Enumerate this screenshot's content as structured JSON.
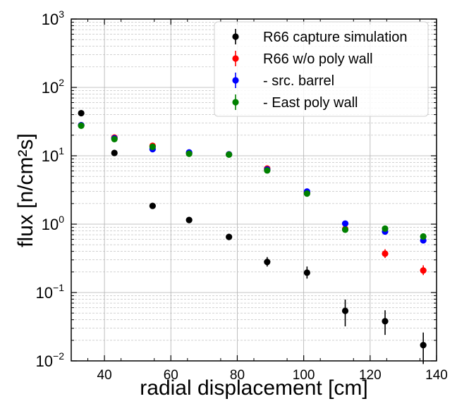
{
  "chart_data": {
    "type": "scatter",
    "title": "",
    "xlabel": "radial displacement [cm]",
    "ylabel": "flux [n/cm²s]",
    "xlim": [
      30,
      140
    ],
    "ylim": [
      0.01,
      1000
    ],
    "yscale": "log",
    "x_ticks": [
      40,
      60,
      80,
      100,
      120,
      140
    ],
    "y_ticks": [
      0.01,
      0.1,
      1,
      10,
      100,
      1000
    ],
    "y_tick_labels": [
      {
        "base": "10",
        "exp": "−2"
      },
      {
        "base": "10",
        "exp": "−1"
      },
      {
        "base": "10",
        "exp": "0"
      },
      {
        "base": "10",
        "exp": "1"
      },
      {
        "base": "10",
        "exp": "2"
      },
      {
        "base": "10",
        "exp": "3"
      }
    ],
    "grid": true,
    "legend_position": "top-right",
    "series": [
      {
        "name": "R66 capture simulation",
        "color": "#000000",
        "points": [
          {
            "x": 33,
            "y": 42
          },
          {
            "x": 43,
            "y": 11
          },
          {
            "x": 54.5,
            "y": 1.85
          },
          {
            "x": 65.5,
            "y": 1.15
          },
          {
            "x": 77.5,
            "y": 0.65
          },
          {
            "x": 89,
            "y": 0.28,
            "err": [
              0.04,
              0.05
            ]
          },
          {
            "x": 101,
            "y": 0.195,
            "err": [
              0.035,
              0.045
            ]
          },
          {
            "x": 112.5,
            "y": 0.054,
            "err": [
              0.022,
              0.025
            ]
          },
          {
            "x": 124.5,
            "y": 0.038,
            "err": [
              0.014,
              0.017
            ]
          },
          {
            "x": 136,
            "y": 0.017,
            "err": [
              0.008,
              0.009
            ]
          }
        ]
      },
      {
        "name": "R66 w/o poly wall",
        "color": "#ff0000",
        "points": [
          {
            "x": 33,
            "y": 28
          },
          {
            "x": 43,
            "y": 18.5
          },
          {
            "x": 54.5,
            "y": 14
          },
          {
            "x": 65.5,
            "y": 11
          },
          {
            "x": 77.5,
            "y": 10.5
          },
          {
            "x": 89,
            "y": 6.5
          },
          {
            "x": 101,
            "y": 2.9
          },
          {
            "x": 112.5,
            "y": 0.85
          },
          {
            "x": 124.5,
            "y": 0.37,
            "err": [
              0.05,
              0.06
            ]
          },
          {
            "x": 136,
            "y": 0.21,
            "err": [
              0.03,
              0.04
            ]
          }
        ]
      },
      {
        "name": "- src. barrel",
        "color": "#0000ff",
        "points": [
          {
            "x": 33,
            "y": 28
          },
          {
            "x": 43,
            "y": 18
          },
          {
            "x": 54.5,
            "y": 12.5
          },
          {
            "x": 65.5,
            "y": 11.2
          },
          {
            "x": 77.5,
            "y": 10.5
          },
          {
            "x": 89,
            "y": 6.3
          },
          {
            "x": 101,
            "y": 3.0
          },
          {
            "x": 112.5,
            "y": 1.02
          },
          {
            "x": 124.5,
            "y": 0.78
          },
          {
            "x": 136,
            "y": 0.58
          }
        ]
      },
      {
        "name": "- East poly wall",
        "color": "#008000",
        "points": [
          {
            "x": 33,
            "y": 27.5
          },
          {
            "x": 43,
            "y": 17.5
          },
          {
            "x": 54.5,
            "y": 13.5
          },
          {
            "x": 65.5,
            "y": 10.7
          },
          {
            "x": 77.5,
            "y": 10.4
          },
          {
            "x": 89,
            "y": 6.1
          },
          {
            "x": 101,
            "y": 2.8
          },
          {
            "x": 112.5,
            "y": 0.83
          },
          {
            "x": 124.5,
            "y": 0.86
          },
          {
            "x": 136,
            "y": 0.66
          }
        ]
      }
    ]
  }
}
